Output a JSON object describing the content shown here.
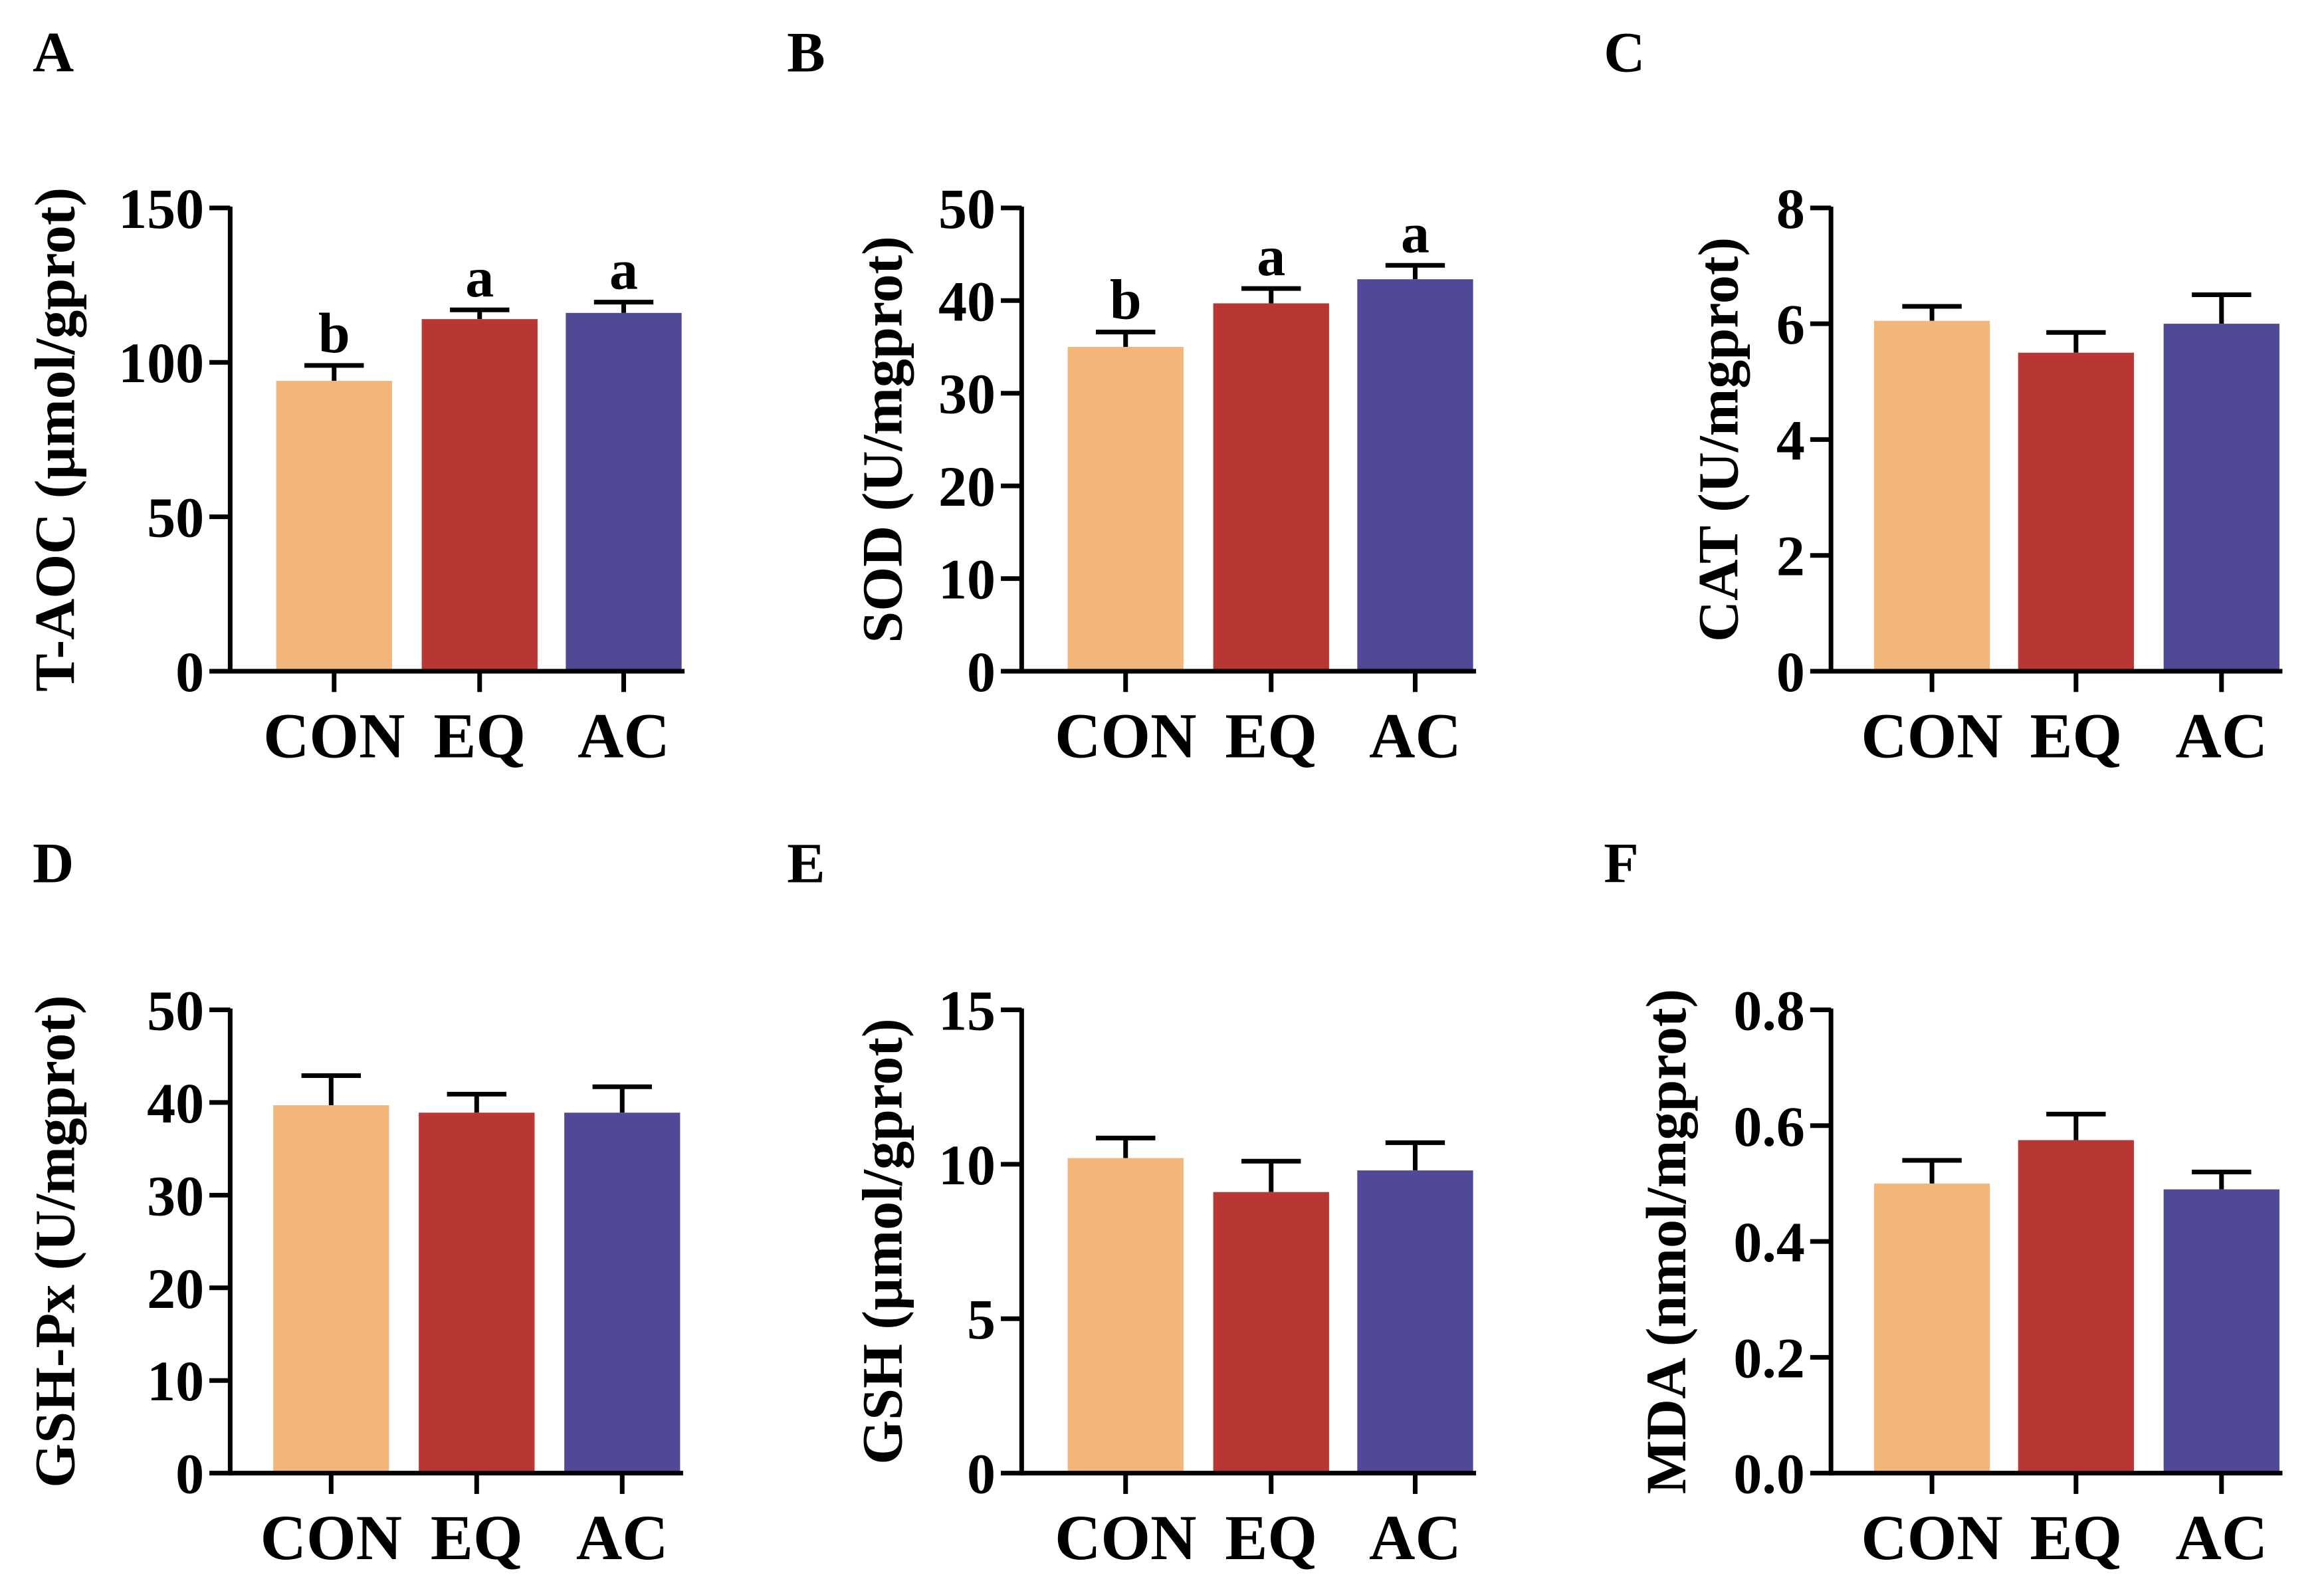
{
  "colors": {
    "CON": "#F2B67B",
    "EQ": "#B83633",
    "AC": "#4F4996",
    "axis": "#000000"
  },
  "chart_data": [
    {
      "panel": "A",
      "type": "bar",
      "ylabel": "T-AOC (µmol/gprot)",
      "categories": [
        "CON",
        "EQ",
        "AC"
      ],
      "values": [
        94,
        114,
        116
      ],
      "errors": [
        5,
        3,
        3.5
      ],
      "significance": [
        "b",
        "a",
        "a"
      ],
      "ylim": [
        0,
        150
      ],
      "yticks": [
        0,
        50,
        100,
        150
      ],
      "ytick_labels": [
        "0",
        "50",
        "100",
        "150"
      ]
    },
    {
      "panel": "B",
      "type": "bar",
      "ylabel": "SOD (U/mgprot)",
      "categories": [
        "CON",
        "EQ",
        "AC"
      ],
      "values": [
        35,
        39.7,
        42.3
      ],
      "errors": [
        1.6,
        1.6,
        1.5
      ],
      "significance": [
        "b",
        "a",
        "a"
      ],
      "ylim": [
        0,
        50
      ],
      "yticks": [
        0,
        10,
        20,
        30,
        40,
        50
      ],
      "ytick_labels": [
        "0",
        "10",
        "20",
        "30",
        "40",
        "50"
      ]
    },
    {
      "panel": "C",
      "type": "bar",
      "ylabel": "CAT (U/mgprot)",
      "categories": [
        "CON",
        "EQ",
        "AC"
      ],
      "values": [
        6.05,
        5.5,
        6.0
      ],
      "errors": [
        0.25,
        0.35,
        0.5
      ],
      "significance": [
        "",
        "",
        ""
      ],
      "ylim": [
        0,
        8
      ],
      "yticks": [
        0,
        2,
        4,
        6,
        8
      ],
      "ytick_labels": [
        "0",
        "2",
        "4",
        "6",
        "8"
      ]
    },
    {
      "panel": "D",
      "type": "bar",
      "ylabel": "GSH-Px (U/mgprot)",
      "categories": [
        "CON",
        "EQ",
        "AC"
      ],
      "values": [
        39.7,
        38.9,
        38.9
      ],
      "errors": [
        3.2,
        2.0,
        2.8
      ],
      "significance": [
        "",
        "",
        ""
      ],
      "ylim": [
        0,
        50
      ],
      "yticks": [
        0,
        10,
        20,
        30,
        40,
        50
      ],
      "ytick_labels": [
        "0",
        "10",
        "20",
        "30",
        "40",
        "50"
      ]
    },
    {
      "panel": "E",
      "type": "bar",
      "ylabel": "GSH (µmol/gprot)",
      "categories": [
        "CON",
        "EQ",
        "AC"
      ],
      "values": [
        10.2,
        9.1,
        9.8
      ],
      "errors": [
        0.65,
        1.0,
        0.9
      ],
      "significance": [
        "",
        "",
        ""
      ],
      "ylim": [
        0,
        15
      ],
      "yticks": [
        0,
        5,
        10,
        15
      ],
      "ytick_labels": [
        "0",
        "5",
        "10",
        "15"
      ]
    },
    {
      "panel": "F",
      "type": "bar",
      "ylabel": "MDA (nmol/mgprot)",
      "categories": [
        "CON",
        "EQ",
        "AC"
      ],
      "values": [
        0.5,
        0.575,
        0.49
      ],
      "errors": [
        0.04,
        0.045,
        0.03
      ],
      "significance": [
        "",
        "",
        ""
      ],
      "ylim": [
        0,
        0.8
      ],
      "yticks": [
        0,
        0.2,
        0.4,
        0.6,
        0.8
      ],
      "ytick_labels": [
        "0.0",
        "0.2",
        "0.4",
        "0.6",
        "0.8"
      ]
    }
  ]
}
